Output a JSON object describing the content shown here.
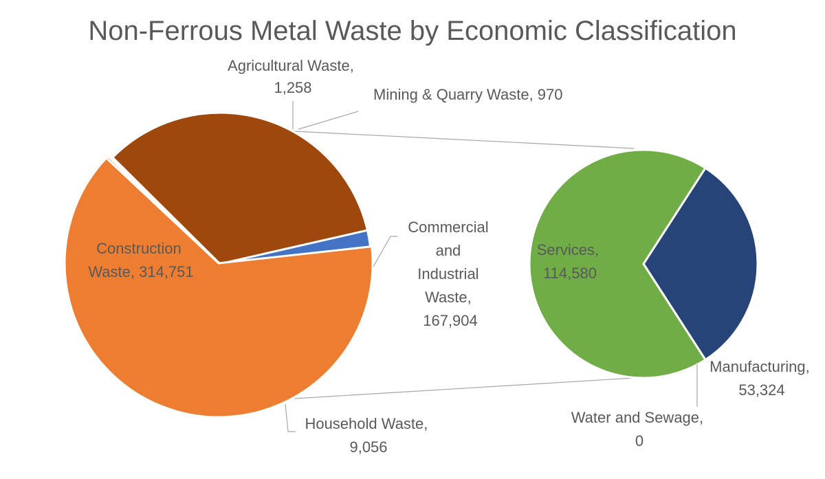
{
  "chart_data": {
    "type": "pie",
    "subtype": "pie-of-pie",
    "title": "Non-Ferrous Metal Waste by Economic Classification",
    "main_pie": [
      {
        "label": "Mining & Quarry Waste",
        "value": 970,
        "color": "#A6A6A6"
      },
      {
        "label": "Commercial and Industrial Waste",
        "value": 167904,
        "color": "#9E480E"
      },
      {
        "label": "Household Waste",
        "value": 9056,
        "color": "#4472C4"
      },
      {
        "label": "Construction Waste",
        "value": 314751,
        "color": "#ED7D31"
      },
      {
        "label": "Agricultural Waste",
        "value": 1258,
        "color": "#ED7D31"
      }
    ],
    "secondary_pie": [
      {
        "label": "Manufacturing",
        "value": 53324,
        "color": "#264478"
      },
      {
        "label": "Water and Sewage",
        "value": 0,
        "color": "#43682B"
      },
      {
        "label": "Services",
        "value": 114580,
        "color": "#70AD47"
      }
    ],
    "legend": "none"
  },
  "labels": {
    "agricultural": [
      "Agricultural Waste,",
      "1,258"
    ],
    "mining": [
      "Mining & Quarry Waste, 970"
    ],
    "commercial": [
      "Commercial",
      "and",
      "Industrial",
      "Waste,",
      "167,904"
    ],
    "construction": [
      "Construction",
      "Waste, 314,751"
    ],
    "household": [
      "Household Waste,",
      "9,056"
    ],
    "services": [
      "Services,",
      "114,580"
    ],
    "manufacturing": [
      "Manufacturing,",
      "53,324"
    ],
    "water": [
      "Water and Sewage,",
      "0"
    ]
  }
}
